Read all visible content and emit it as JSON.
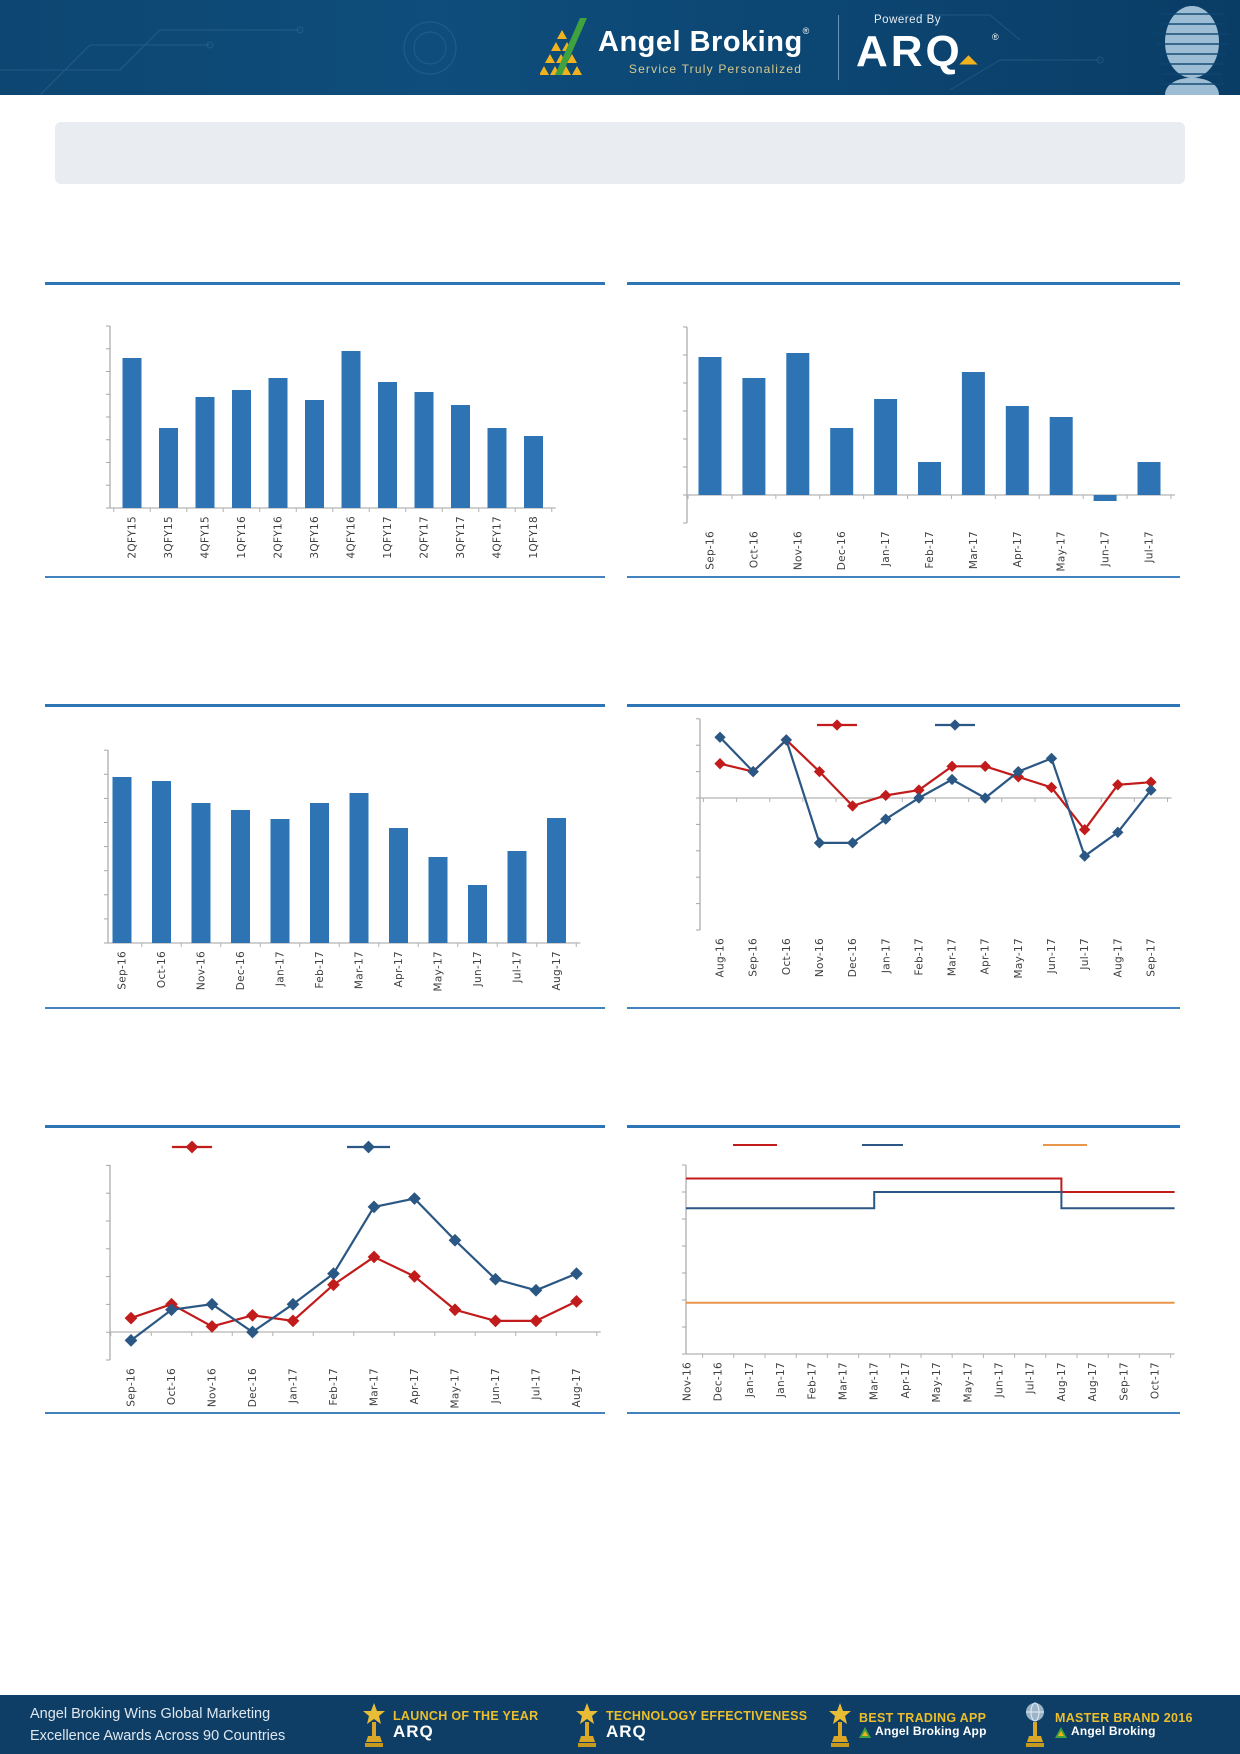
{
  "header": {
    "brand": "Angel Broking",
    "registered_mark": "®",
    "tagline": "Service Truly Personalized",
    "powered_by": "Powered By",
    "product_name": "ARQ"
  },
  "banner_title": "",
  "chart_data": [
    {
      "type": "bar",
      "title": "",
      "categories": [
        "2QFY15",
        "3QFY15",
        "4QFY15",
        "1QFY16",
        "2QFY16",
        "3QFY16",
        "4QFY16",
        "1QFY17",
        "2QFY17",
        "3QFY17",
        "4QFY17",
        "1QFY18"
      ],
      "values": [
        150,
        80,
        111,
        118,
        130,
        108,
        157,
        126,
        116,
        103,
        80,
        72
      ],
      "unit": "estimated-from-pixels",
      "ylim": [
        0,
        185
      ],
      "bar_color": "#2E74B5",
      "y_tick_labels": []
    },
    {
      "type": "bar",
      "title": "",
      "categories": [
        "Sep-16",
        "Oct-16",
        "Nov-16",
        "Dec-16",
        "Jan-17",
        "Feb-17",
        "Mar-17",
        "Apr-17",
        "May-17",
        "Jun-17",
        "Jul-17"
      ],
      "values": [
        138,
        117,
        142,
        67,
        96,
        33,
        123,
        89,
        78,
        -6,
        33
      ],
      "unit": "estimated-from-pixels",
      "ylim": [
        -28,
        168
      ],
      "bar_color": "#2E74B5",
      "y_tick_labels": []
    },
    {
      "type": "bar",
      "title": "",
      "categories": [
        "Sep-16",
        "Oct-16",
        "Nov-16",
        "Dec-16",
        "Jan-17",
        "Feb-17",
        "Mar-17",
        "Apr-17",
        "May-17",
        "Jun-17",
        "Jul-17",
        "Aug-17"
      ],
      "values": [
        166,
        162,
        140,
        133,
        124,
        140,
        150,
        115,
        86,
        58,
        92,
        125
      ],
      "unit": "estimated-from-pixels",
      "ylim": [
        0,
        193
      ],
      "bar_color": "#2E74B5",
      "y_tick_labels": []
    },
    {
      "type": "line",
      "title": "",
      "categories": [
        "Aug-16",
        "Sep-16",
        "Oct-16",
        "Nov-16",
        "Dec-16",
        "Jan-17",
        "Feb-17",
        "Mar-17",
        "Apr-17",
        "May-17",
        "Jun-17",
        "Jul-17",
        "Aug-17",
        "Sep-17"
      ],
      "series": [
        {
          "name": "red-series",
          "label": "",
          "color": "#C11B1B",
          "values": [
            1.3,
            1.0,
            2.2,
            1.0,
            -0.3,
            0.1,
            0.3,
            1.2,
            1.2,
            0.8,
            0.4,
            -1.2,
            0.5,
            0.6
          ]
        },
        {
          "name": "blue-series",
          "label": "",
          "color": "#2A5783",
          "values": [
            2.3,
            1.0,
            2.2,
            -1.7,
            -1.7,
            -0.8,
            0.0,
            0.7,
            0.0,
            1.0,
            1.5,
            -2.2,
            -1.3,
            0.3
          ]
        }
      ],
      "unit": "axis-tick-units",
      "ylim": [
        -5.1,
        2.9
      ],
      "legend_position": "top"
    },
    {
      "type": "line",
      "title": "",
      "categories": [
        "Sep-16",
        "Oct-16",
        "Nov-16",
        "Dec-16",
        "Jan-17",
        "Feb-17",
        "Mar-17",
        "Apr-17",
        "May-17",
        "Jun-17",
        "Jul-17",
        "Aug-17"
      ],
      "series": [
        {
          "name": "red-series",
          "label": "",
          "color": "#C11B1B",
          "values": [
            0.5,
            1.0,
            0.2,
            0.6,
            0.4,
            1.7,
            2.7,
            2.0,
            0.8,
            0.4,
            0.4,
            1.1
          ]
        },
        {
          "name": "blue-series",
          "label": "",
          "color": "#2A5783",
          "values": [
            -0.3,
            0.8,
            1.0,
            0.0,
            1.0,
            2.1,
            4.5,
            4.8,
            3.3,
            1.9,
            1.5,
            2.1
          ]
        }
      ],
      "unit": "axis-tick-units",
      "ylim": [
        -1.0,
        6.0
      ],
      "legend_position": "top"
    },
    {
      "type": "step-line",
      "title": "",
      "categories": [
        "Nov-16",
        "Dec-16",
        "Jan-17",
        "Jan-17",
        "Feb-17",
        "Mar-17",
        "Mar-17",
        "Apr-17",
        "May-17",
        "May-17",
        "Jun-17",
        "Jul-17",
        "Aug-17",
        "Aug-17",
        "Sep-17",
        "Oct-17"
      ],
      "series": [
        {
          "name": "red-series",
          "label": "",
          "color": "#C11B1B",
          "values": [
            6.5,
            6.5,
            6.5,
            6.5,
            6.5,
            6.5,
            6.5,
            6.5,
            6.5,
            6.5,
            6.5,
            6.5,
            6.0,
            6.0,
            6.0,
            6.0
          ]
        },
        {
          "name": "blue-series",
          "label": "",
          "color": "#2A5783",
          "values": [
            5.4,
            5.4,
            5.4,
            5.4,
            5.4,
            5.4,
            6.0,
            6.0,
            6.0,
            6.0,
            6.0,
            6.0,
            5.4,
            5.4,
            5.4,
            5.4
          ]
        },
        {
          "name": "orange-series",
          "label": "",
          "color": "#E8964B",
          "values": [
            1.9,
            1.9,
            1.9,
            1.9,
            1.9,
            1.9,
            1.9,
            1.9,
            1.9,
            1.9,
            1.9,
            1.9,
            1.9,
            1.9,
            1.9,
            1.9
          ]
        }
      ],
      "unit": "axis-tick-units",
      "ylim": [
        0,
        7
      ],
      "legend_position": "top"
    }
  ],
  "footer": {
    "line1": "Angel Broking Wins Global Marketing",
    "line2": "Excellence Awards Across 90 Countries",
    "awards": [
      {
        "title": "LAUNCH OF THE YEAR",
        "subtitle": "ARQ"
      },
      {
        "title": "TECHNOLOGY EFFECTIVENESS",
        "subtitle": "ARQ"
      },
      {
        "title": "BEST TRADING APP",
        "subtitle": "Angel Broking App"
      },
      {
        "title": "MASTER BRAND 2016",
        "subtitle": "Angel Broking"
      }
    ]
  },
  "colors": {
    "bar_blue": "#2E74B5",
    "line_blue": "#2A5783",
    "line_red": "#C11B1B",
    "line_orange": "#E8964B",
    "section_rule_blue": "#2E75B6",
    "header_navy": "#0D4A77",
    "footer_navy": "#0E3E66",
    "award_gold": "#EDBE2B",
    "logo_gold": "#F2B21D",
    "logo_green": "#3FA13F"
  }
}
